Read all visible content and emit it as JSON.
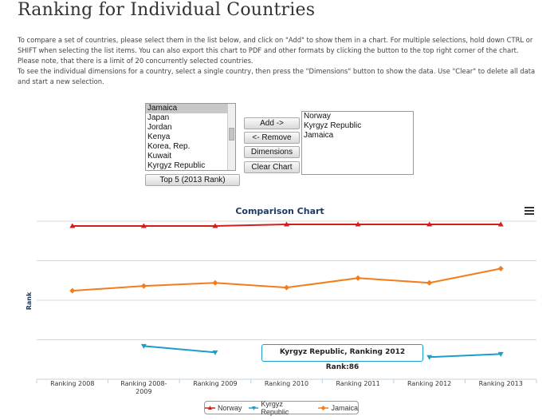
{
  "page": {
    "title": "Ranking for Individual Countries",
    "intro_p1": "To compare a set of countries, please select them in the list below, and click on \"Add\" to show them in a chart. For multiple selections, hold down CTRL or SHIFT when selecting the list items. You can also export this chart to PDF and other formats by clicking the button to the top right corner of the chart. Please note, that there is a limit of 20 concurrently selected countries.",
    "intro_p2": "To see the individual dimensions for a country, select a single country, then press the \"Dimensions\" button to show the data. Use \"Clear\" to delete all data and start a new selection."
  },
  "country_list": {
    "items": [
      "Jamaica",
      "Japan",
      "Jordan",
      "Kenya",
      "Korea, Rep.",
      "Kuwait",
      "Kyrgyz Republic"
    ],
    "selected": "Jamaica"
  },
  "selected_list": {
    "items": [
      "Norway",
      "Kyrgyz Republic",
      "Jamaica"
    ]
  },
  "buttons": {
    "add": "Add ->",
    "remove": "<- Remove",
    "dimensions": "Dimensions",
    "clear": "Clear Chart",
    "top5": "Top 5 (2013 Rank)"
  },
  "chart_data": {
    "type": "line",
    "title": "Comparison Chart",
    "ylabel": "Rank",
    "xlabel": "",
    "categories": [
      "Ranking 2008",
      "Ranking 2008-\n2009",
      "Ranking 2009",
      "Ranking 2010",
      "Ranking 2011",
      "Ranking 2012",
      "Ranking 2013"
    ],
    "y_reversed": true,
    "ylim": [
      0,
      100
    ],
    "grid": true,
    "series": [
      {
        "name": "Norway",
        "color": "#d11f1f",
        "marker": "triangle",
        "values": [
          3,
          3,
          3,
          2,
          2,
          2,
          2
        ]
      },
      {
        "name": "Kyrgyz Republic",
        "color": "#1a9fc9",
        "marker": "triangle-down",
        "values": [
          null,
          79,
          83,
          null,
          null,
          86,
          84
        ]
      },
      {
        "name": "Jamaica",
        "color": "#f57c1a",
        "marker": "diamond",
        "values": [
          44,
          41,
          39,
          42,
          36,
          39,
          30
        ]
      }
    ],
    "tooltip": {
      "series": "Kyrgyz Republic",
      "category": "Ranking 2012",
      "text": "Kyrgyz Republic, Ranking 2012 Rank:86"
    },
    "legend_position": "bottom-center"
  }
}
